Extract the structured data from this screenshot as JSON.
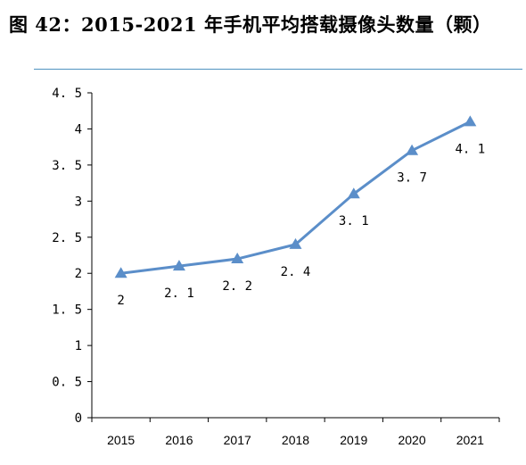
{
  "figure": {
    "title": "图 42：2015-2021 年手机平均搭载摄像头数量（颗）"
  },
  "colors": {
    "series": "#5b8ec9",
    "rule": "#4f93c0",
    "axis": "#000000"
  },
  "chart_data": {
    "type": "line",
    "categories": [
      "2015",
      "2016",
      "2017",
      "2018",
      "2019",
      "2020",
      "2021"
    ],
    "series": [
      {
        "values": [
          2,
          2.1,
          2.2,
          2.4,
          3.1,
          3.7,
          4.1
        ],
        "labels": [
          "2",
          "2. 1",
          "2. 2",
          "2. 4",
          "3. 1",
          "3. 7",
          "4. 1"
        ],
        "marker": "triangle"
      }
    ],
    "yticks": [
      "0",
      "0. 5",
      "1",
      "1. 5",
      "2",
      "2. 5",
      "3",
      "3. 5",
      "4",
      "4. 5"
    ],
    "ylim": [
      0,
      4.5
    ],
    "grid": false,
    "legend": "none",
    "data_labels": "below"
  }
}
